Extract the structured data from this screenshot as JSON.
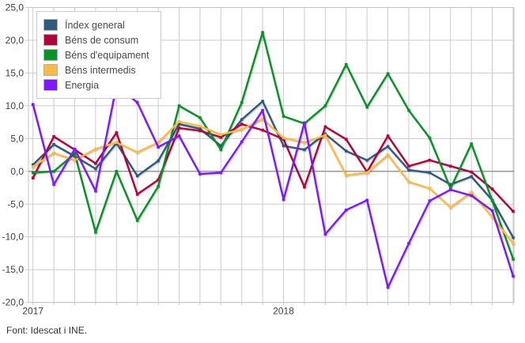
{
  "footer": {
    "text": "Font: Idescat i INE."
  },
  "legend": {
    "items": [
      {
        "label": "Índex general",
        "color": "#315a7d"
      },
      {
        "label": "Béns de consum",
        "color": "#b0043f"
      },
      {
        "label": "Béns d'equipament",
        "color": "#0a9128"
      },
      {
        "label": "Béns intermedis",
        "color": "#fdba45"
      },
      {
        "label": "Energia",
        "color": "#7d1afc"
      }
    ]
  },
  "colors": {
    "background": "#ffffff",
    "gridline": "#cccccc",
    "zero_line": "#7f7f7f",
    "plot_border": "#c4c4c4",
    "axis_text": "#3f3f3f"
  },
  "chart_data": {
    "type": "line",
    "title": "",
    "xlabel": "",
    "ylabel": "",
    "ylim": [
      -20,
      25
    ],
    "ytick_step": 5,
    "grid": true,
    "legend_position": "top-left",
    "y_tick_labels": [
      "25,0",
      "20,0",
      "15,0",
      "10,0",
      "5,0",
      "0,0",
      "-5,0",
      "-10,0",
      "-15,0",
      "-20,0"
    ],
    "x_ticks": [
      {
        "index": 0,
        "label": "2017"
      },
      {
        "index": 12,
        "label": "2018"
      }
    ],
    "points_per_year": 12,
    "n_points": 24,
    "series": [
      {
        "name": "Índex general",
        "color": "#315a7d",
        "values": [
          1.0,
          4.1,
          2.3,
          0.4,
          4.3,
          -0.7,
          1.6,
          7.2,
          6.5,
          3.9,
          7.9,
          10.7,
          3.9,
          3.3,
          5.7,
          3.1,
          1.7,
          3.8,
          0.2,
          -0.2,
          -2.0,
          -0.8,
          -4.4,
          -10.1
        ]
      },
      {
        "name": "Béns de consum",
        "color": "#b0043f",
        "values": [
          -1.0,
          5.3,
          3.3,
          1.2,
          5.9,
          -3.5,
          -1.3,
          6.6,
          6.2,
          5.2,
          7.2,
          6.3,
          4.9,
          -2.4,
          6.8,
          4.9,
          -0.1,
          5.4,
          0.8,
          1.7,
          0.8,
          -0.1,
          -2.7,
          -6.1
        ]
      },
      {
        "name": "Béns d'equipament",
        "color": "#0a9128",
        "values": [
          -0.2,
          0.0,
          2.7,
          -9.3,
          0.0,
          -7.5,
          -2.3,
          10.0,
          8.2,
          3.3,
          10.5,
          21.2,
          8.4,
          7.3,
          10.0,
          16.3,
          9.8,
          14.9,
          9.3,
          5.1,
          -2.6,
          4.2,
          -4.5,
          -13.4
        ]
      },
      {
        "name": "Béns intermedis",
        "color": "#fdba45",
        "values": [
          0.7,
          2.8,
          1.7,
          3.4,
          4.4,
          2.9,
          4.4,
          7.6,
          6.9,
          5.6,
          6.4,
          8.0,
          5.1,
          4.4,
          5.5,
          -0.6,
          -0.2,
          2.5,
          -1.6,
          -2.6,
          -5.5,
          -3.2,
          -7.0,
          -11.0
        ]
      },
      {
        "name": "Energia",
        "color": "#7d1afc",
        "values": [
          10.2,
          -2.0,
          3.4,
          -3.0,
          13.1,
          10.5,
          3.7,
          5.4,
          -0.4,
          -0.2,
          4.5,
          9.3,
          -4.3,
          7.4,
          -9.6,
          -5.9,
          -4.4,
          -17.7,
          -11.0,
          -4.5,
          -2.8,
          -3.7,
          -6.0,
          -16.0
        ]
      }
    ]
  }
}
